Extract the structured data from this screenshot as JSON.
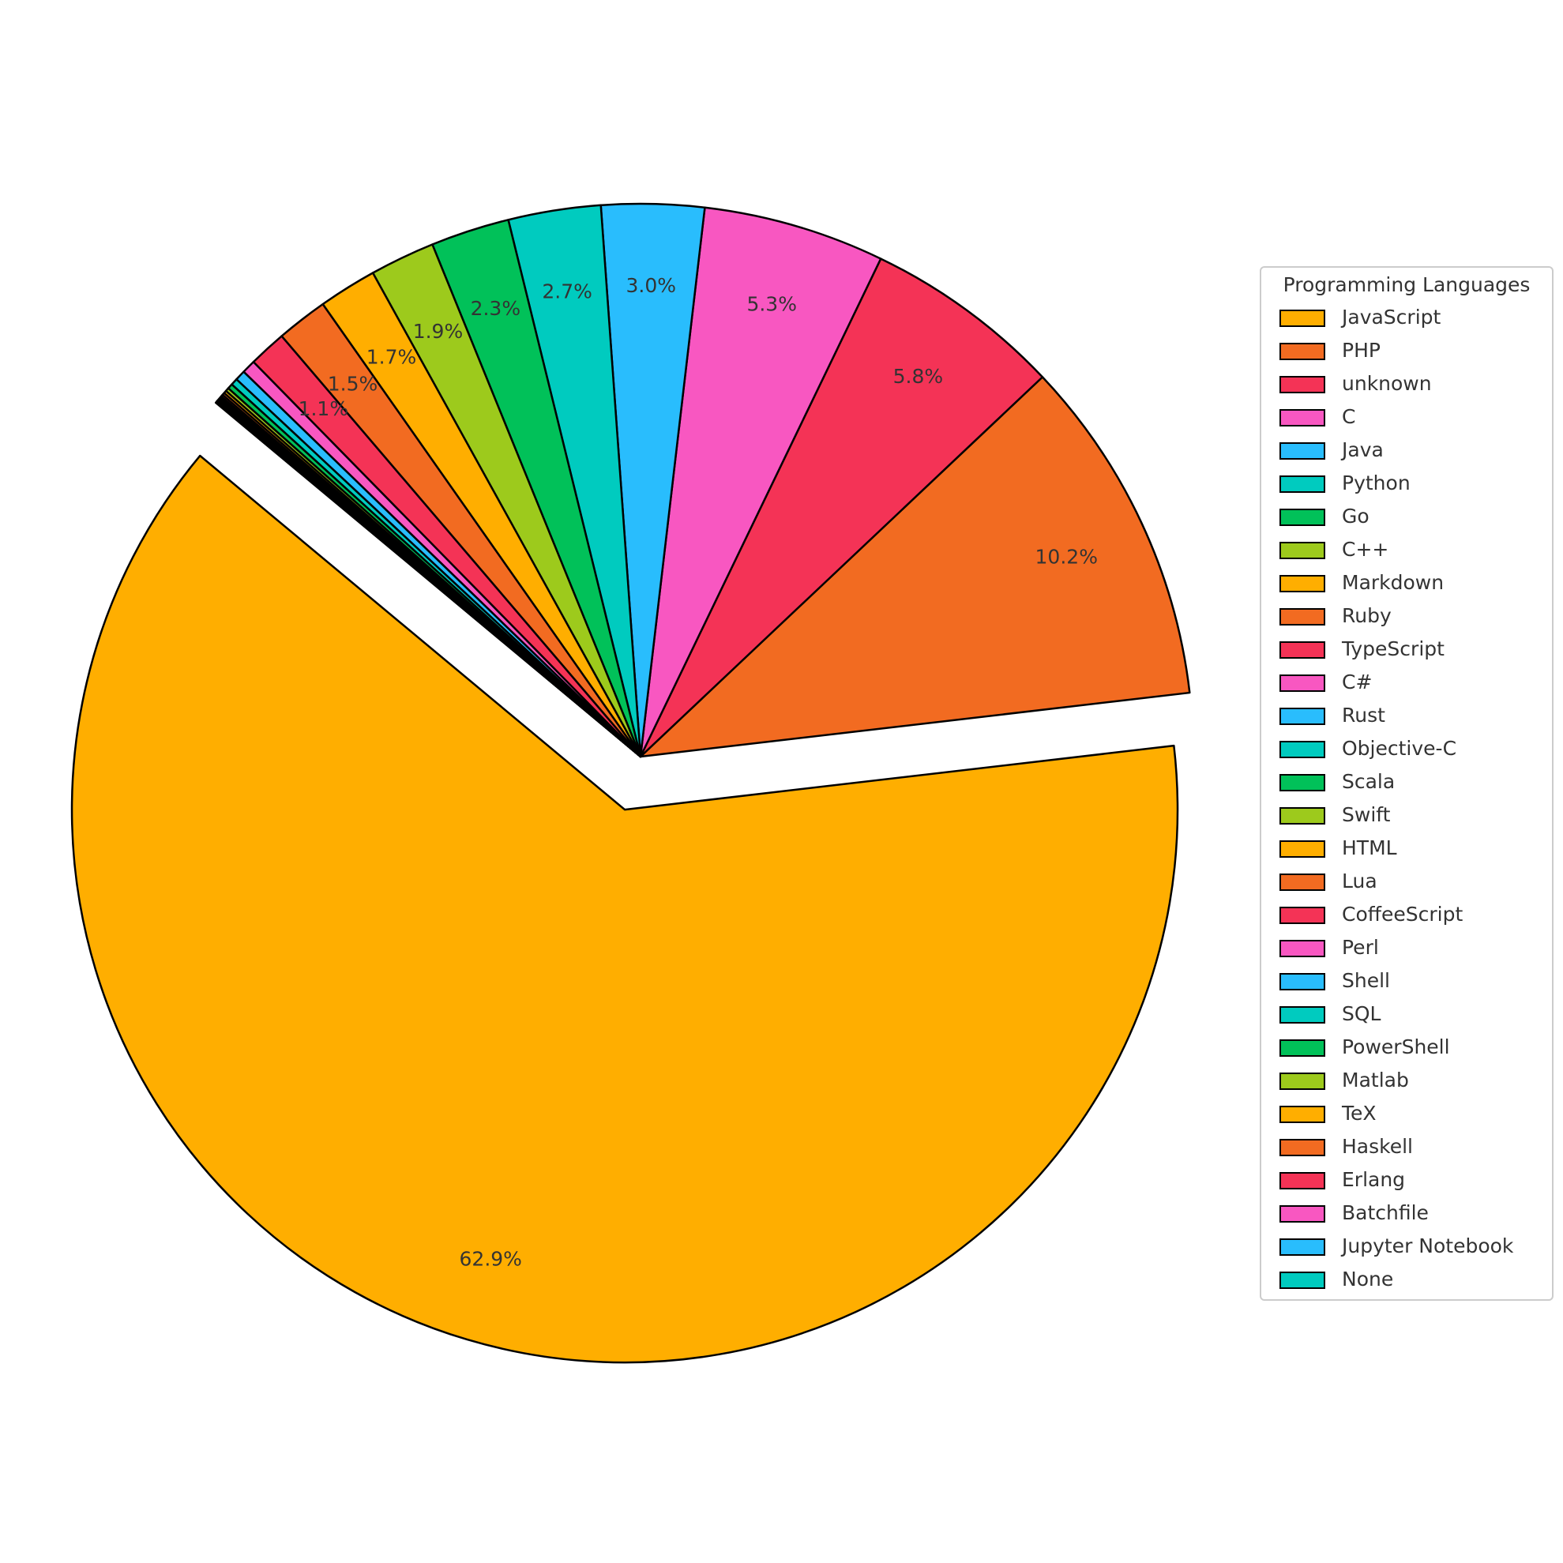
{
  "chart_data": {
    "type": "pie",
    "legend_title": "Programming Languages",
    "legend": "right",
    "categories": [
      "JavaScript",
      "PHP",
      "unknown",
      "C",
      "Java",
      "Python",
      "Go",
      "C++",
      "Markdown",
      "Ruby",
      "TypeScript",
      "C#",
      "Rust",
      "Objective-C",
      "Scala",
      "Swift",
      "HTML",
      "Lua",
      "CoffeeScript",
      "Perl",
      "Shell",
      "SQL",
      "PowerShell",
      "Matlab",
      "TeX",
      "Haskell",
      "Erlang",
      "Batchfile",
      "Jupyter Notebook",
      "None"
    ],
    "values": [
      62.9,
      10.2,
      5.8,
      5.3,
      3.0,
      2.7,
      2.3,
      1.9,
      1.7,
      1.5,
      1.1,
      0.4,
      0.3,
      0.2,
      0.15,
      0.1,
      0.08,
      0.07,
      0.06,
      0.05,
      0.04,
      0.03,
      0.02,
      0.02,
      0.02,
      0.01,
      0.01,
      0.01,
      0.01,
      0.02
    ],
    "value_labels": [
      "62.9%",
      "10.2%",
      "5.8%",
      "5.3%",
      "3.0%",
      "2.7%",
      "2.3%",
      "1.9%",
      "1.7%",
      "1.5%",
      "1.1%",
      null,
      null,
      null,
      null,
      null,
      null,
      null,
      null,
      null,
      null,
      null,
      null,
      null,
      null,
      null,
      null,
      null,
      null,
      null
    ],
    "colors": [
      "#FFAE00",
      "#F26B21",
      "#F43356",
      "#F857C1",
      "#29BDFD",
      "#00CBBF",
      "#01C159",
      "#9DCA1C",
      "#FFAE00",
      "#F26B21",
      "#F43356",
      "#F857C1",
      "#29BDFD",
      "#00CBBF",
      "#01C159",
      "#9DCA1C",
      "#FFAE00",
      "#F26B21",
      "#F43356",
      "#F857C1",
      "#29BDFD",
      "#00CBBF",
      "#01C159",
      "#9DCA1C",
      "#FFAE00",
      "#F26B21",
      "#F43356",
      "#F857C1",
      "#29BDFD",
      "#00CBBF"
    ]
  }
}
